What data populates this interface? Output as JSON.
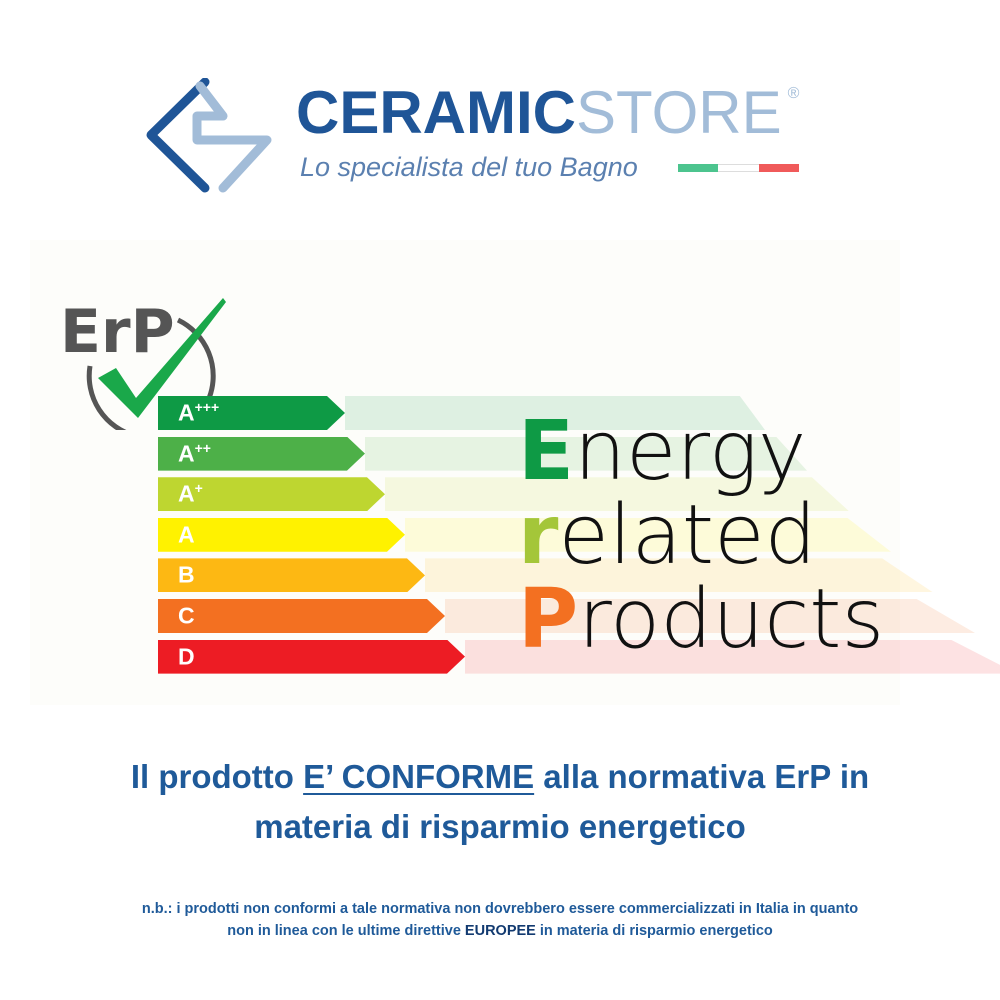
{
  "brand": {
    "name_part1": "CERAMIC",
    "name_part2": "STORE",
    "registered": "®",
    "tagline": "Lo specialista del tuo Bagno",
    "colors": {
      "primary": "#1f5597",
      "secondary": "#a2bcd8"
    },
    "flag_colors": [
      "#4cc48e",
      "#ffffff",
      "#f05a5a"
    ]
  },
  "erp": {
    "logo_text": "ErP",
    "logo_icon": "check-mark-icon",
    "classes": [
      {
        "label": "A",
        "sup": "+++",
        "color": "#0e9a45"
      },
      {
        "label": "A",
        "sup": "++",
        "color": "#4db048"
      },
      {
        "label": "A",
        "sup": "+",
        "color": "#bed630"
      },
      {
        "label": "A",
        "sup": "",
        "color": "#fff200"
      },
      {
        "label": "B",
        "sup": "",
        "color": "#fdb813"
      },
      {
        "label": "C",
        "sup": "",
        "color": "#f37021"
      },
      {
        "label": "D",
        "sup": "",
        "color": "#ed1c24"
      }
    ],
    "words": [
      {
        "initial": "E",
        "rest": "nergy",
        "color": "#0e9a45"
      },
      {
        "initial": "r",
        "rest": "elated",
        "color": "#a4c639"
      },
      {
        "initial": "P",
        "rest": "roducts",
        "color": "#f37021"
      }
    ]
  },
  "headline": {
    "part1": "Il prodotto ",
    "emphasis": "E’ CONFORME",
    "part2": " alla normativa ErP in",
    "line2": "materia di risparmio energetico"
  },
  "note": {
    "line1": "n.b.: i prodotti non conformi a tale normativa non dovrebbero essere commercializzati in Italia in quanto",
    "line2a": "non in linea con le ultime direttive ",
    "line2b": "EUROPEE",
    "line2c": " in materia di risparmio energetico"
  }
}
